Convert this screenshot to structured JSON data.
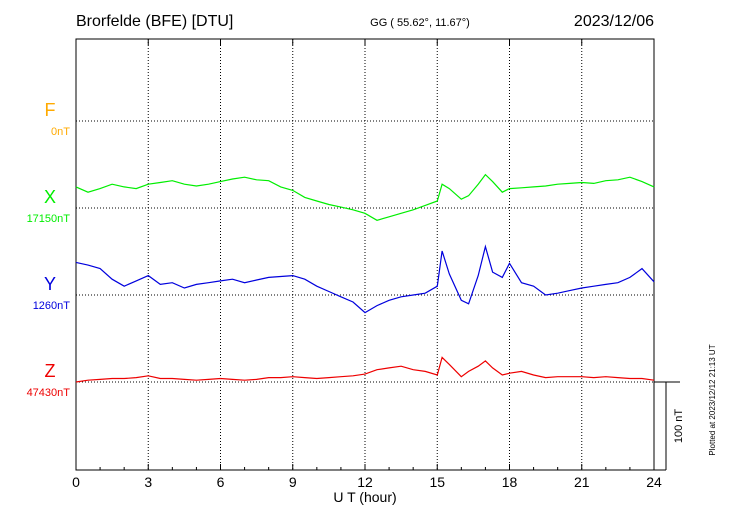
{
  "header": {
    "station": "Brorfelde (BFE)  [DTU]",
    "coords": "GG ( 55.62°,  11.67°)",
    "date": "2023/12/06"
  },
  "footer_note": "Plotted at 2023/12/12 21:13 UT",
  "scale_label": "100 nT",
  "chart_data": {
    "type": "line",
    "title": "",
    "xlabel": "U T (hour)",
    "ylabel": "",
    "xlim": [
      0,
      24
    ],
    "x_ticks": [
      0,
      3,
      6,
      9,
      12,
      15,
      18,
      21,
      24
    ],
    "x_tick_labels": [
      "0",
      "3",
      "6",
      "9",
      "12",
      "15",
      "18",
      "21",
      "24"
    ],
    "grid": true,
    "scale_bar_nT": 100,
    "series": [
      {
        "name": "F",
        "baseline_label": "0nT",
        "color": "#ffaa00",
        "x": [],
        "values": []
      },
      {
        "name": "X",
        "baseline_label": "17150nT",
        "color": "#00ee00",
        "x": [
          0,
          0.5,
          1,
          1.5,
          2,
          2.5,
          3,
          3.5,
          4,
          4.5,
          5,
          5.5,
          6,
          6.5,
          7,
          7.5,
          8,
          8.5,
          9,
          9.5,
          10,
          10.5,
          11,
          11.5,
          12,
          12.5,
          13,
          13.5,
          14,
          14.5,
          15,
          15.2,
          15.5,
          16,
          16.3,
          16.7,
          17,
          17.3,
          17.7,
          18,
          18.5,
          19,
          19.5,
          20,
          20.5,
          21,
          21.5,
          22,
          22.5,
          23,
          23.5,
          24
        ],
        "values": [
          24,
          18,
          22,
          27,
          24,
          22,
          27,
          29,
          31,
          27,
          25,
          27,
          30,
          33,
          35,
          32,
          31,
          24,
          20,
          12,
          8,
          4,
          1,
          -2,
          -6,
          -14,
          -10,
          -6,
          -2,
          3,
          8,
          27,
          22,
          10,
          14,
          27,
          38,
          30,
          18,
          22,
          23,
          24,
          25,
          27,
          28,
          29,
          28,
          31,
          32,
          35,
          30,
          24
        ]
      },
      {
        "name": "Y",
        "baseline_label": "1260nT",
        "color": "#0000dd",
        "x": [
          0,
          0.5,
          1,
          1.5,
          2,
          2.5,
          3,
          3.5,
          4,
          4.5,
          5,
          5.5,
          6,
          6.5,
          7,
          7.5,
          8,
          8.5,
          9,
          9.5,
          10,
          10.5,
          11,
          11.5,
          12,
          12.5,
          13,
          13.5,
          14,
          14.5,
          15,
          15.2,
          15.5,
          16,
          16.3,
          16.7,
          17,
          17.3,
          17.7,
          18,
          18.5,
          19,
          19.5,
          20,
          20.5,
          21,
          21.5,
          22,
          22.5,
          23,
          23.5,
          24
        ],
        "values": [
          37,
          34,
          30,
          18,
          10,
          16,
          22,
          12,
          14,
          8,
          12,
          14,
          16,
          18,
          14,
          17,
          20,
          21,
          22,
          18,
          10,
          4,
          -2,
          -8,
          -20,
          -12,
          -6,
          -2,
          0,
          2,
          10,
          50,
          24,
          -6,
          -10,
          22,
          55,
          26,
          20,
          36,
          14,
          10,
          0,
          2,
          5,
          8,
          10,
          12,
          14,
          20,
          30,
          15
        ]
      },
      {
        "name": "Z",
        "baseline_label": "47430nT",
        "color": "#ee0000",
        "x": [
          0,
          0.5,
          1,
          1.5,
          2,
          2.5,
          3,
          3.5,
          4,
          4.5,
          5,
          5.5,
          6,
          6.5,
          7,
          7.5,
          8,
          8.5,
          9,
          9.5,
          10,
          10.5,
          11,
          11.5,
          12,
          12.5,
          13,
          13.5,
          14,
          14.5,
          15,
          15.2,
          15.5,
          16,
          16.3,
          16.7,
          17,
          17.3,
          17.7,
          18,
          18.5,
          19,
          19.5,
          20,
          20.5,
          21,
          21.5,
          22,
          22.5,
          23,
          23.5,
          24
        ],
        "values": [
          0,
          2,
          3,
          4,
          4,
          5,
          7,
          4,
          4,
          3,
          2,
          3,
          4,
          3,
          2,
          3,
          5,
          5,
          6,
          5,
          4,
          5,
          6,
          7,
          9,
          14,
          16,
          18,
          14,
          12,
          8,
          28,
          20,
          6,
          12,
          18,
          24,
          16,
          8,
          10,
          12,
          8,
          5,
          6,
          6,
          6,
          5,
          6,
          5,
          4,
          4,
          2
        ]
      }
    ]
  }
}
